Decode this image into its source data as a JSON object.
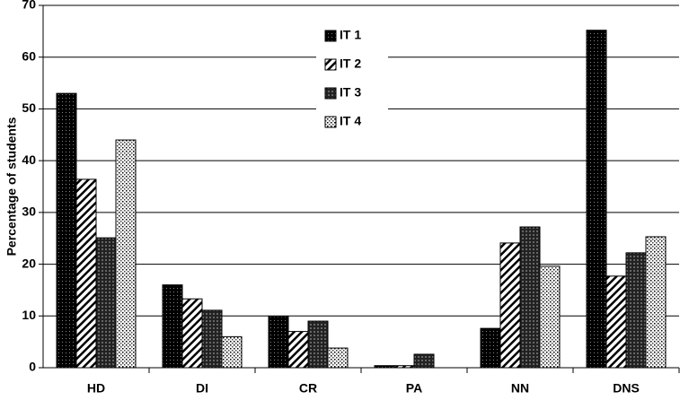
{
  "chart_data": {
    "type": "bar",
    "y_label": "Percentage of students",
    "categories": [
      "HD",
      "DI",
      "CR",
      "PA",
      "NN",
      "DNS"
    ],
    "series": [
      {
        "name": "IT 1",
        "color": "#000000",
        "values": [
          53,
          16,
          9.9,
          0.4,
          7.6,
          65.2
        ]
      },
      {
        "name": "IT 2",
        "color": "#ffffff",
        "values": [
          36.4,
          13.3,
          7,
          0.4,
          24.1,
          17.7
        ]
      },
      {
        "name": "IT 3",
        "color": "#222222",
        "values": [
          25.1,
          11.1,
          9,
          2.6,
          27.2,
          22.2
        ]
      },
      {
        "name": "IT 4",
        "color": "#ffffff",
        "values": [
          44,
          6,
          3.8,
          0,
          19.6,
          25.3
        ]
      }
    ],
    "ylim": [
      0,
      70
    ],
    "yticks": [
      0,
      10,
      20,
      30,
      40,
      50,
      60,
      70
    ],
    "grid": true
  }
}
